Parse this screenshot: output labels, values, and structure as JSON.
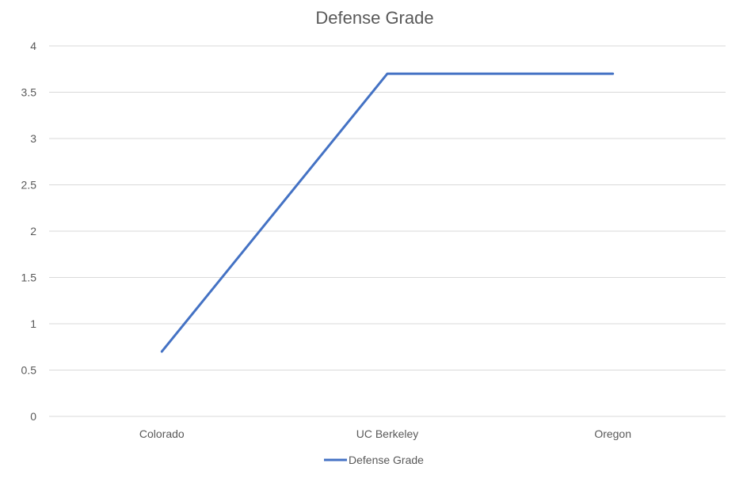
{
  "chart_data": {
    "type": "line",
    "title": "Defense Grade",
    "xlabel": "",
    "ylabel": "",
    "categories": [
      "Colorado",
      "UC Berkeley",
      "Oregon"
    ],
    "series": [
      {
        "name": "Defense Grade",
        "values": [
          0.7,
          3.7,
          3.7
        ],
        "color": "#4472c4"
      }
    ],
    "ylim": [
      0,
      4
    ],
    "yticks": [
      0,
      0.5,
      1,
      1.5,
      2,
      2.5,
      3,
      3.5,
      4
    ],
    "ytick_labels": [
      "0",
      "0.5",
      "1",
      "1.5",
      "2",
      "2.5",
      "3",
      "3.5",
      "4"
    ],
    "grid": true,
    "legend_position": "bottom"
  }
}
